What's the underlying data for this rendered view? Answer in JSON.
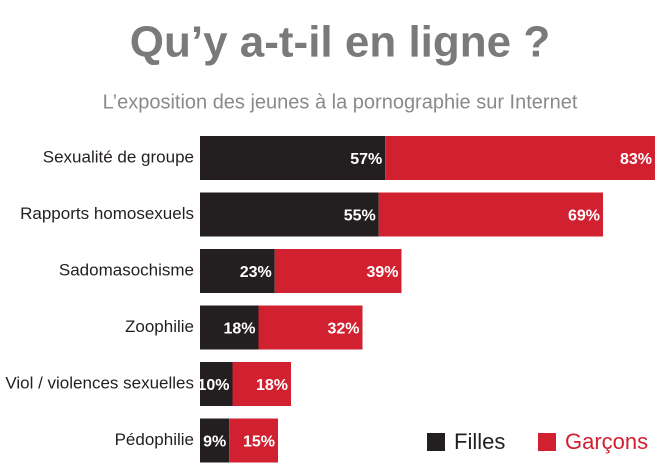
{
  "chart_data": {
    "type": "stacked-bar-horizontal",
    "title": "Qu’y a-t-il en ligne ?",
    "subtitle": "L’exposition des jeunes à la pornographie sur Internet",
    "categories": [
      "Sexualité de groupe",
      "Rapports homosexuels",
      "Sadomasochisme",
      "Zoophilie",
      "Viol / violences sexuelles",
      "Pédophilie"
    ],
    "series": [
      {
        "name": "Filles",
        "color": "#231f20",
        "values": [
          57,
          55,
          23,
          18,
          10,
          9
        ],
        "value_labels": [
          "57%",
          "55%",
          "23%",
          "18%",
          "10%",
          "9%"
        ]
      },
      {
        "name": "Garçons",
        "color": "#d1202f",
        "values": [
          83,
          69,
          39,
          32,
          18,
          15
        ],
        "value_labels": [
          "83%",
          "69%",
          "39%",
          "32%",
          "18%",
          "15%"
        ]
      }
    ]
  }
}
